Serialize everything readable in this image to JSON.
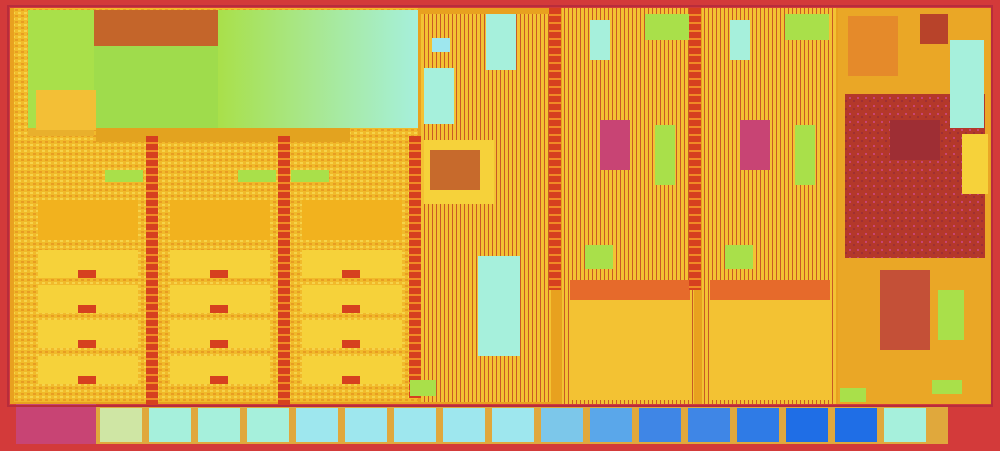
{
  "image": {
    "subject": "die-shot",
    "palette": {
      "border": "#d33a3a",
      "substrate": "#f2b21e",
      "logic": "#f6d23a",
      "highlight": "#f8ea4a",
      "cache_green": "#a9e04a",
      "cache_cyan": "#a6f0dc",
      "bus_red": "#d6401f",
      "rust": "#b8432a",
      "magenta": "#c84474",
      "io_light": "#9ee7ee",
      "io_blue": "#3f86e6",
      "io_deep": "#1f6ee6"
    }
  }
}
